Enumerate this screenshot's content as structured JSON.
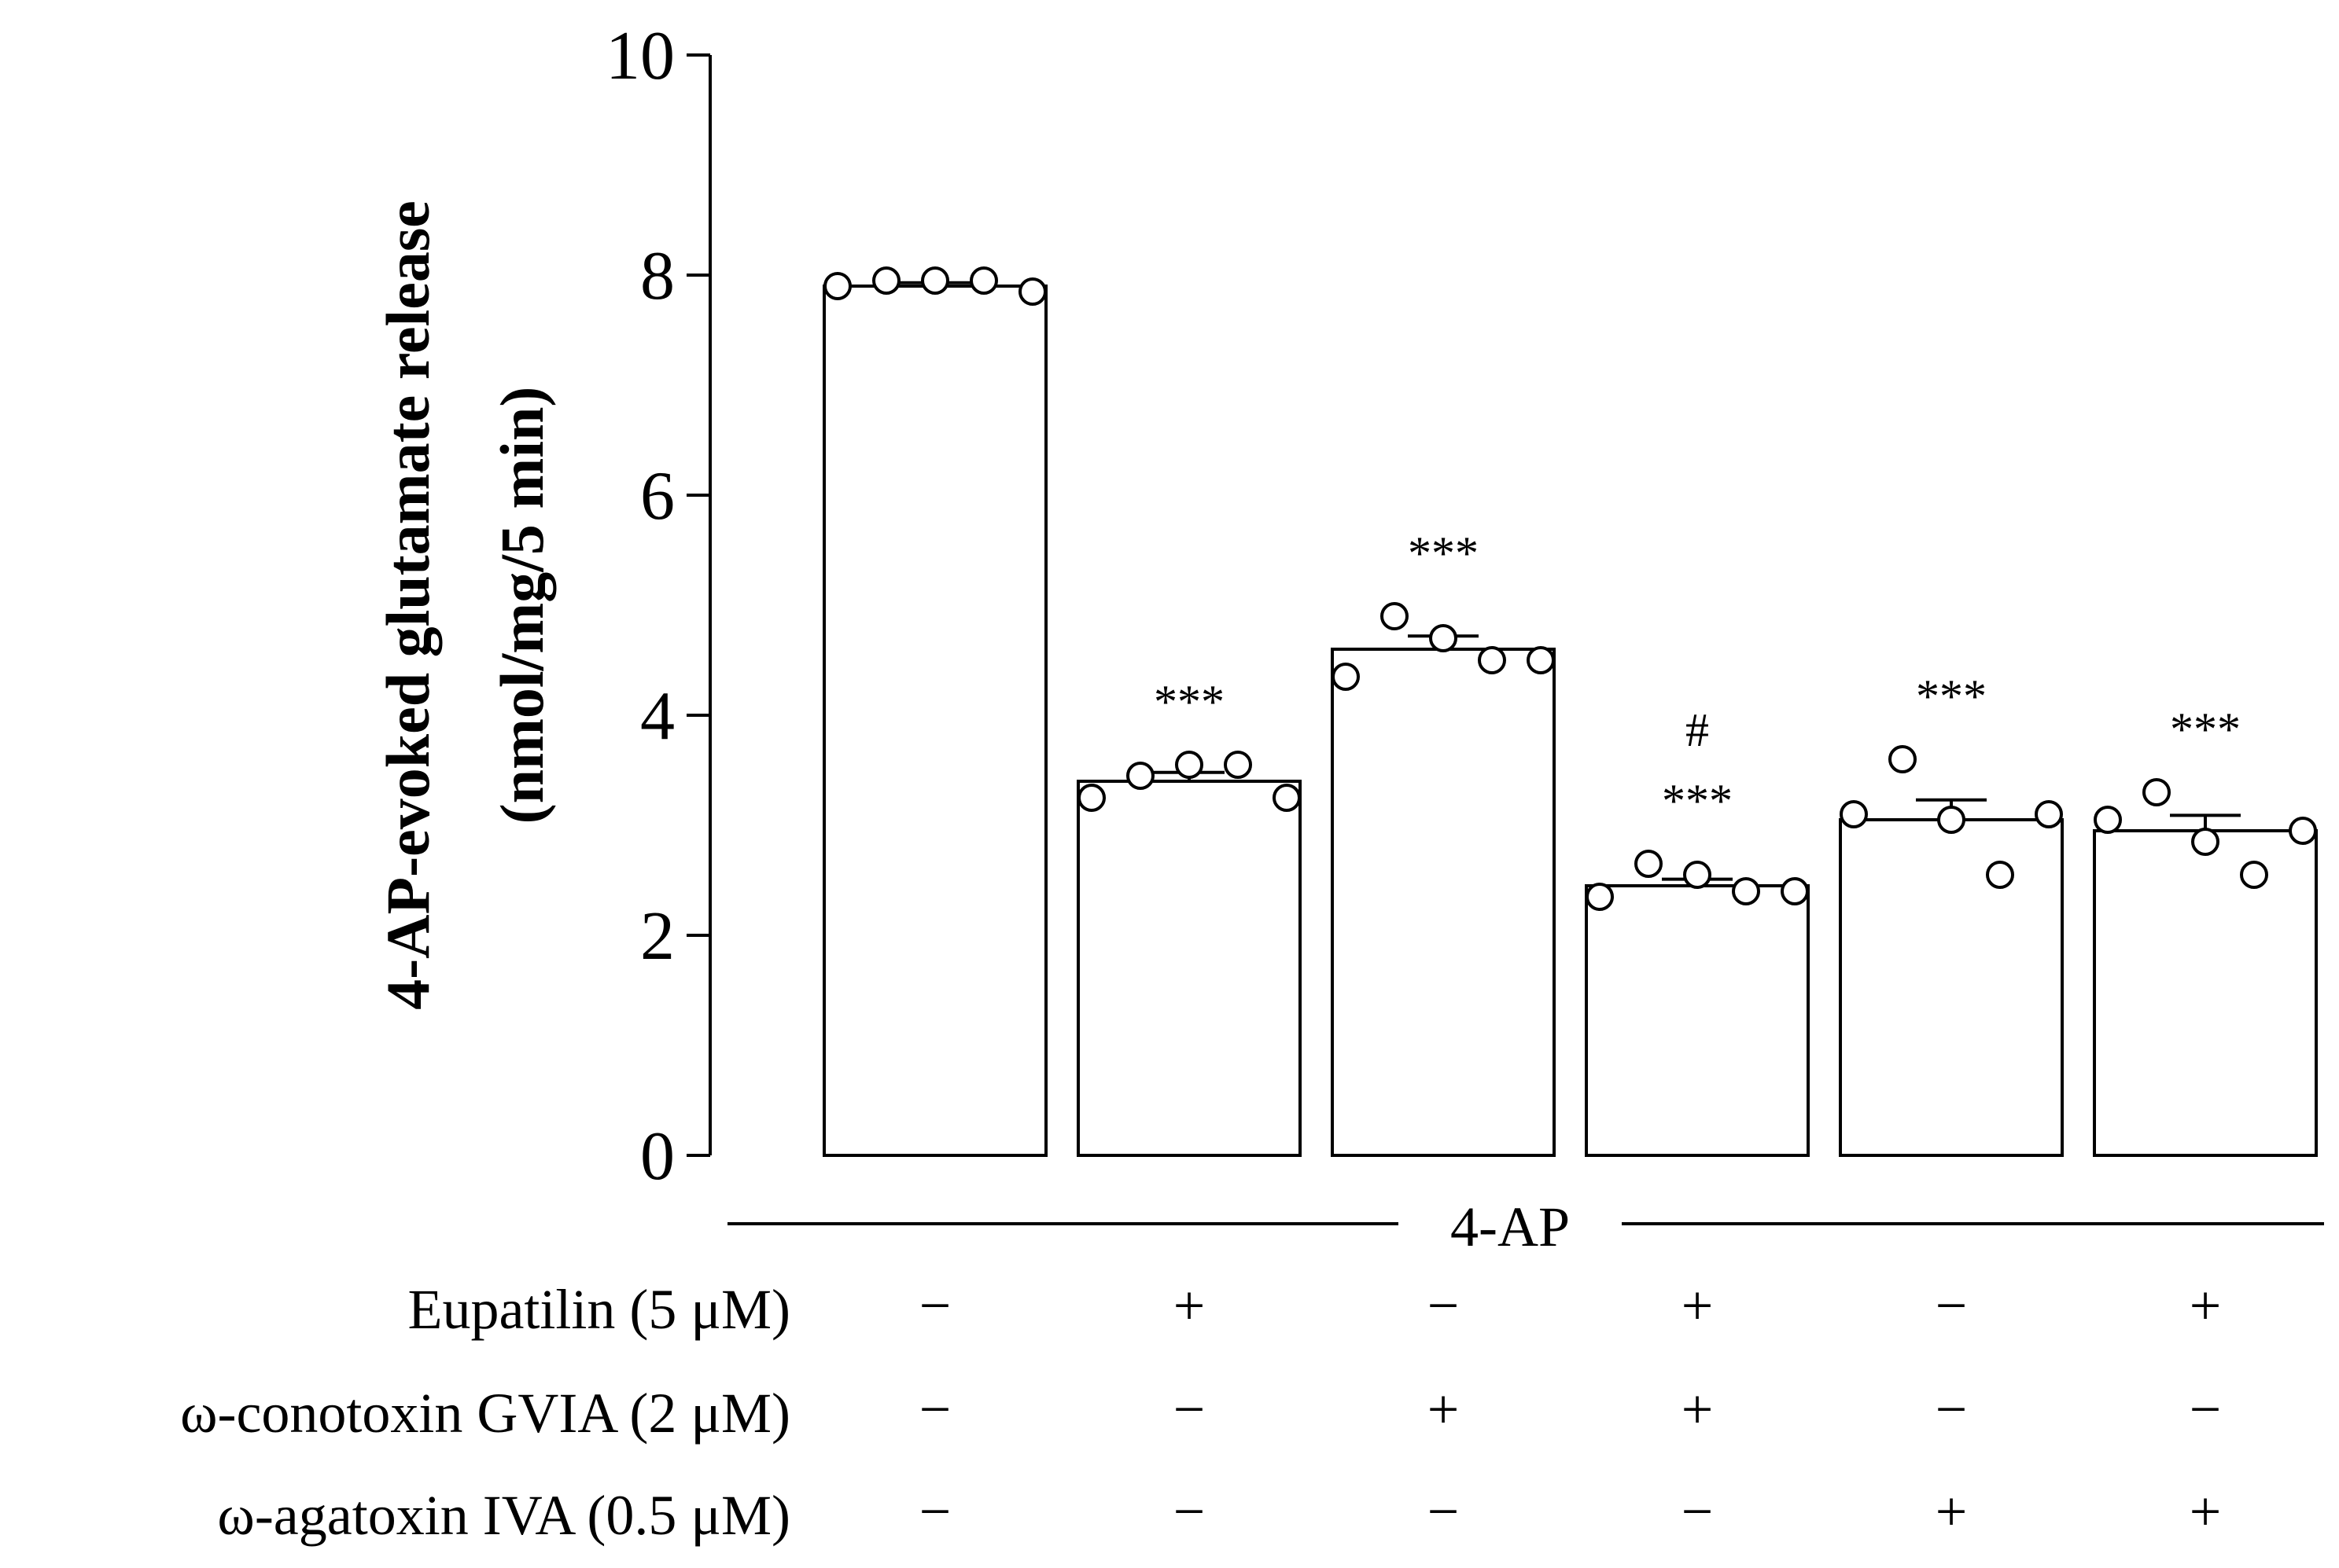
{
  "chart_data": {
    "type": "bar",
    "ylabel": [
      "4-AP-evoked glutamate release",
      "(nmol/mg/5 min)"
    ],
    "ylim": [
      0,
      10
    ],
    "yticks": [
      0,
      2,
      4,
      6,
      8,
      10
    ],
    "group_label": "4-AP",
    "series": [
      {
        "name": "4-AP-evoked glutamate release",
        "values": [
          7.9,
          3.4,
          4.6,
          2.45,
          3.05,
          2.95
        ],
        "sem": [
          0.03,
          0.08,
          0.12,
          0.06,
          0.18,
          0.14
        ],
        "points": [
          [
            7.9,
            7.95,
            7.95,
            7.95,
            7.85
          ],
          [
            3.25,
            3.45,
            3.55,
            3.55,
            3.25
          ],
          [
            4.35,
            4.9,
            4.7,
            4.5,
            4.5
          ],
          [
            2.35,
            2.65,
            2.55,
            2.4,
            2.4
          ],
          [
            3.1,
            3.6,
            3.05,
            2.55,
            3.1
          ],
          [
            3.05,
            3.3,
            2.85,
            2.55,
            2.95
          ]
        ],
        "significance": [
          [],
          [
            "***"
          ],
          [
            "***"
          ],
          [
            "#",
            "***"
          ],
          [
            "***"
          ],
          [
            "***"
          ]
        ]
      }
    ],
    "conditions": [
      {
        "label": "Eupatilin (5 μM)",
        "signs": [
          "−",
          "+",
          "−",
          "+",
          "−",
          "+"
        ]
      },
      {
        "label": "ω-conotoxin GVIA (2 μM)",
        "signs": [
          "−",
          "−",
          "+",
          "+",
          "−",
          "−"
        ]
      },
      {
        "label": "ω-agatoxin IVA (0.5 μM)",
        "signs": [
          "−",
          "−",
          "−",
          "−",
          "+",
          "+"
        ]
      }
    ]
  }
}
